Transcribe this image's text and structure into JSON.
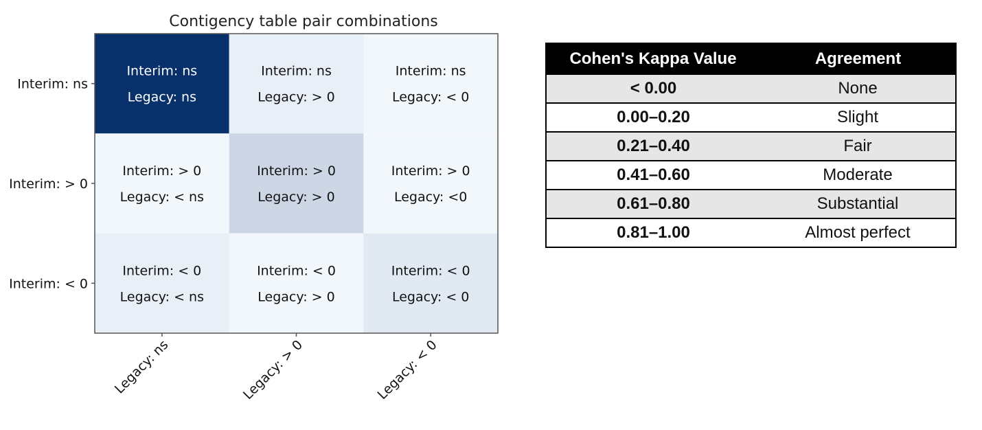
{
  "chart_data": [
    {
      "type": "heatmap",
      "title": "Contigency table pair combinations",
      "rows": [
        "Interim: ns",
        "Interim: > 0",
        "Interim: < 0"
      ],
      "columns": [
        "Legacy: ns",
        "Legacy: > 0",
        "Legacy: < 0"
      ],
      "cells": [
        [
          {
            "line1": "Interim: ns",
            "line2": "Legacy: ns",
            "intensity": 1.0
          },
          {
            "line1": "Interim: ns",
            "line2": "Legacy: > 0",
            "intensity": 0.06
          },
          {
            "line1": "Interim: ns",
            "line2": "Legacy: < 0",
            "intensity": 0.02
          }
        ],
        [
          {
            "line1": "Interim: > 0",
            "line2": "Legacy: < ns",
            "intensity": 0.02
          },
          {
            "line1": "Interim: > 0",
            "line2": "Legacy: > 0",
            "intensity": 0.18
          },
          {
            "line1": "Interim: > 0",
            "line2": "Legacy: <0",
            "intensity": 0.02
          }
        ],
        [
          {
            "line1": "Interim: < 0",
            "line2": "Legacy: < ns",
            "intensity": 0.06
          },
          {
            "line1": "Interim: < 0",
            "line2": "Legacy: > 0",
            "intensity": 0.02
          },
          {
            "line1": "Interim: < 0",
            "line2": "Legacy: < 0",
            "intensity": 0.09
          }
        ]
      ],
      "colors": {
        "low": "#f7fbff",
        "high": "#08306b"
      }
    },
    {
      "type": "table",
      "columns": [
        "Cohen's Kappa Value",
        "Agreement"
      ],
      "rows": [
        [
          "< 0.00",
          "None"
        ],
        [
          "0.00–0.20",
          "Slight"
        ],
        [
          "0.21–0.40",
          "Fair"
        ],
        [
          "0.41–0.60",
          "Moderate"
        ],
        [
          "0.61–0.80",
          "Substantial"
        ],
        [
          "0.81–1.00",
          "Almost perfect"
        ]
      ]
    }
  ]
}
